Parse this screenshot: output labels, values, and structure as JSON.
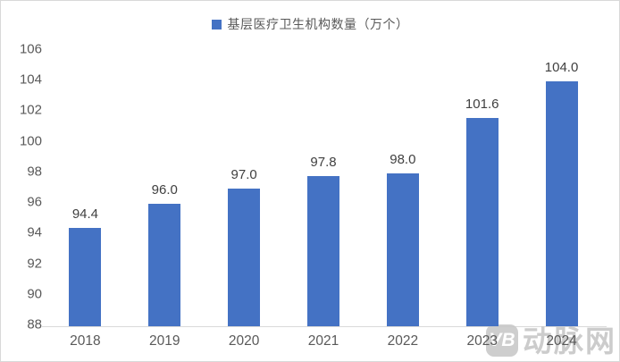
{
  "chart_data": {
    "type": "bar",
    "title": "",
    "legend": [
      "基层医疗卫生机构数量（万个）"
    ],
    "legend_position": "top-center",
    "categories": [
      "2018",
      "2019",
      "2020",
      "2021",
      "2022",
      "2023",
      "2024"
    ],
    "values": [
      94.4,
      96.0,
      97.0,
      97.8,
      98.0,
      101.6,
      104.0
    ],
    "value_labels": [
      "94.4",
      "96.0",
      "97.0",
      "97.8",
      "98.0",
      "101.6",
      "104.0"
    ],
    "xlabel": "",
    "ylabel": "",
    "ylim": [
      88,
      106
    ],
    "yticks": [
      88,
      90,
      92,
      94,
      96,
      98,
      100,
      102,
      104,
      106
    ],
    "grid": false,
    "bar_color": "#4472C4"
  },
  "legend": {
    "label": "基层医疗卫生机构数量（万个）",
    "marker_color": "#4472C4"
  },
  "watermark": {
    "badge": "VB",
    "text": "动脉网"
  },
  "colors": {
    "bar": "#4472C4",
    "axis_text": "#595959",
    "value_label_text": "#404040",
    "axis_line": "#d9d9d9",
    "border": "#d9d9d9",
    "watermark": "#c6c6c6",
    "background": "#ffffff"
  }
}
